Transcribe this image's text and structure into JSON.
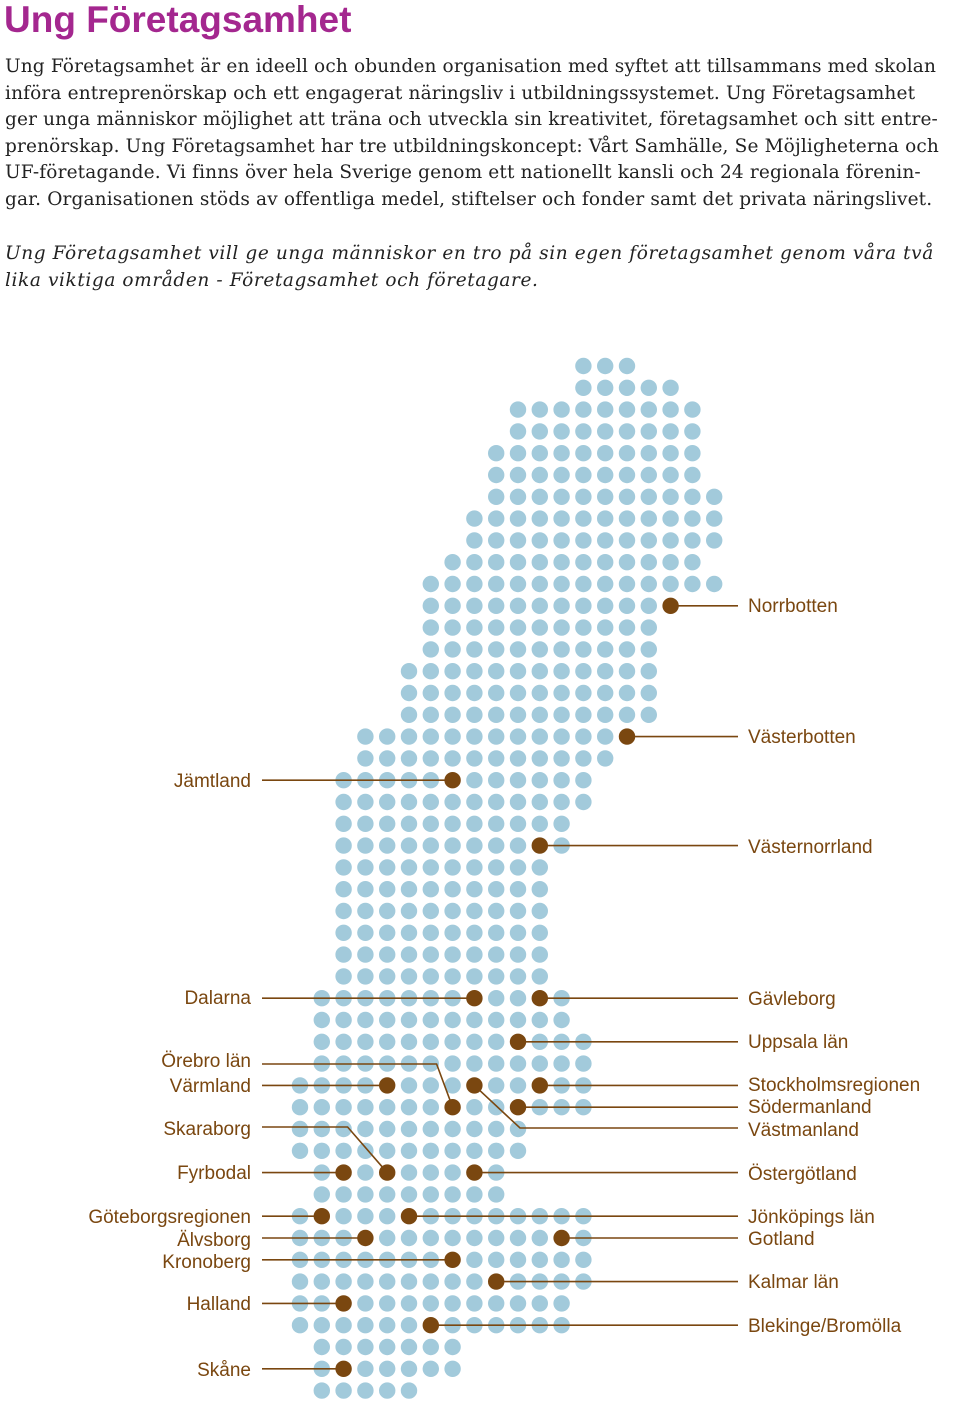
{
  "title": "Ung Företagsamhet",
  "intro_lines": [
    "Ung Företagsamhet är en ideell och obunden organisation med syftet att tillsammans med skolan",
    "införa entreprenörskap och ett engagerat näringsliv i utbildningssystemet. Ung Företagsamhet",
    "ger unga människor möjlighet att träna och utveckla sin kreativitet, företagsamhet och sitt entre-",
    "prenörskap. Ung Företagsamhet har tre utbildningskoncept: Vårt Samhälle, Se Möjligheterna och",
    "UF-företagande. Vi finns över hela Sverige genom ett nationellt kansli och 24 regionala förenin-",
    "gar. Organisationen stöds av offentliga medel, stiftelser och fonder samt det privata näringslivet."
  ],
  "tagline_lines": [
    "Ung Företagsamhet vill ge unga människor en tro på sin egen företagsamhet genom våra två",
    "lika viktiga områden - Företagsamhet och företagare."
  ],
  "map": {
    "dot_color": "#a2cadb",
    "marker_color": "#7a4710",
    "regions_left": [
      "Jämtland",
      "Dalarna",
      "Örebro län",
      "Värmland",
      "Skaraborg",
      "Fyrbodal",
      "Göteborgsregionen",
      "Älvsborg",
      "Kronoberg",
      "Halland",
      "Skåne"
    ],
    "regions_right": [
      "Norrbotten",
      "Västerbotten",
      "Västernorrland",
      "Gävleborg",
      "Uppsala län",
      "Stockholmsregionen",
      "Södermanland",
      "Västmanland",
      "Östergötland",
      "Jönköpings län",
      "Gotland",
      "Kalmar län",
      "Blekinge/Bromölla"
    ]
  }
}
